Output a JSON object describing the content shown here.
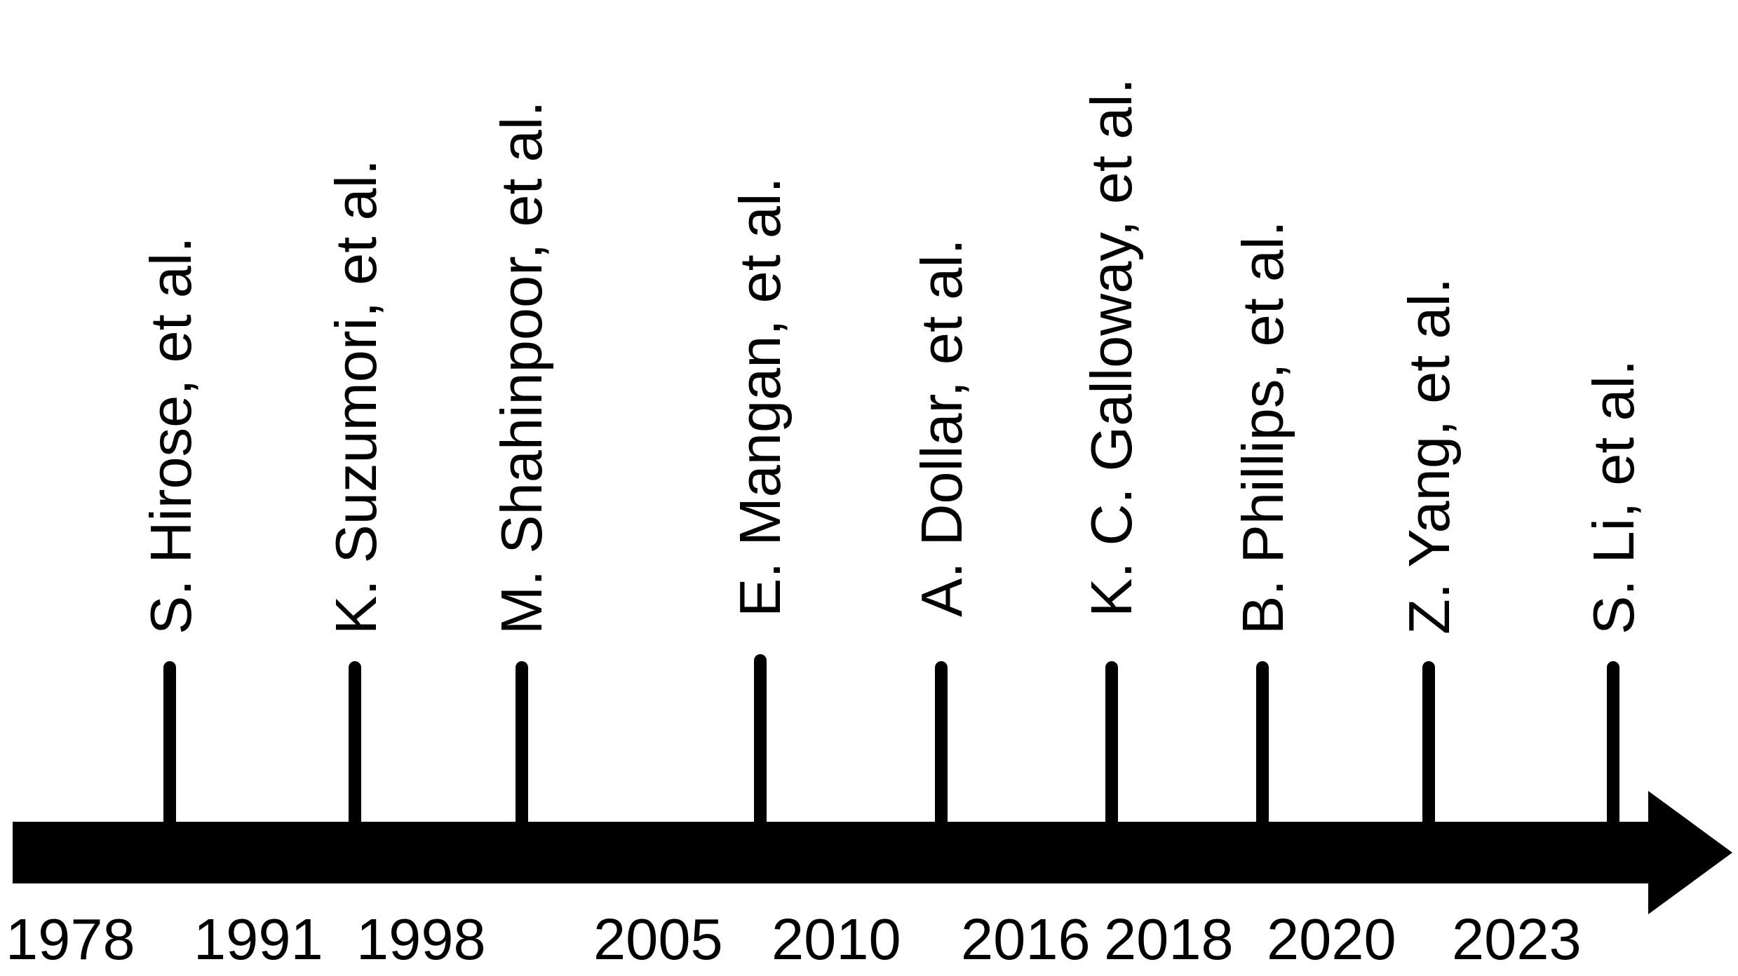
{
  "timeline": {
    "line_color": "#000000",
    "background_color": "#ffffff",
    "milestones": [
      {
        "author": "S. Hirose, et al.",
        "year": "1978"
      },
      {
        "author": "K. Suzumori, et al.",
        "year": "1991"
      },
      {
        "author": "M. Shahinpoor, et al.",
        "year": "1998"
      },
      {
        "author": "E. Mangan, et al.",
        "year": "2005"
      },
      {
        "author": "A. Dollar, et al.",
        "year": "2010"
      },
      {
        "author": "K. C. Galloway, et al.",
        "year": "2016"
      },
      {
        "author": "B. Phillips, et al.",
        "year": "2018"
      },
      {
        "author": "Z. Yang, et al.",
        "year": "2020"
      },
      {
        "author": "S. Li, et al.",
        "year": "2023"
      }
    ]
  }
}
